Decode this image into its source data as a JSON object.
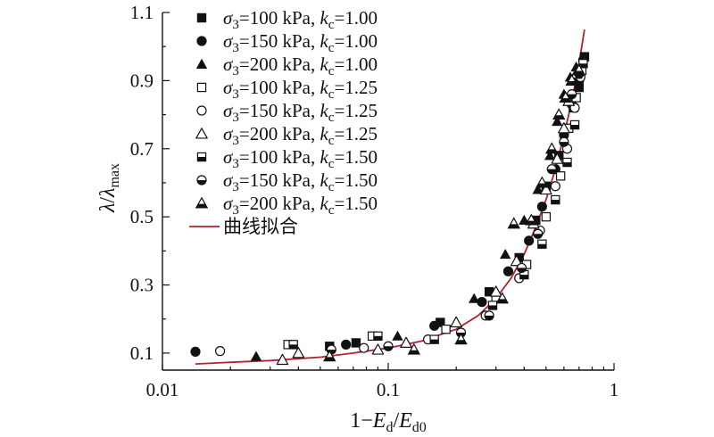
{
  "chart_data": {
    "type": "scatter",
    "xscale": "log",
    "xlim": [
      0.01,
      1
    ],
    "ylim": [
      0.05,
      1.1
    ],
    "xticks": [
      {
        "value": 0.01,
        "label": "0.01"
      },
      {
        "value": 0.1,
        "label": "0.1"
      },
      {
        "value": 1,
        "label": "1"
      }
    ],
    "yticks": [
      {
        "value": 0.1,
        "label": "0.1"
      },
      {
        "value": 0.3,
        "label": "0.3"
      },
      {
        "value": 0.5,
        "label": "0.5"
      },
      {
        "value": 0.7,
        "label": "0.7"
      },
      {
        "value": 0.9,
        "label": "0.9"
      },
      {
        "value": 1.1,
        "label": "1.1"
      }
    ],
    "xlabel": {
      "pre": "1−",
      "var": "E",
      "sub1": "d",
      "mid": "/",
      "var2": "E",
      "sub2": "d0"
    },
    "ylabel": {
      "var": "λ",
      "mid": "/",
      "var2": "λ",
      "sub": "max"
    },
    "legend_position": "top-left",
    "series": [
      {
        "name_parts": {
          "s": "σ",
          "sub": "3",
          "text": "=100 kPa, ",
          "k": "k",
          "ksub": "c",
          "kval": "=1.00"
        },
        "marker": "square-filled",
        "x": [
          0.055,
          0.072,
          0.17,
          0.28,
          0.38,
          0.45,
          0.5,
          0.57,
          0.62,
          0.66,
          0.7,
          0.74
        ],
        "y": [
          0.12,
          0.13,
          0.19,
          0.28,
          0.38,
          0.49,
          0.59,
          0.68,
          0.76,
          0.82,
          0.88,
          0.97
        ]
      },
      {
        "name_parts": {
          "s": "σ",
          "sub": "3",
          "text": "=150 kPa, ",
          "k": "k",
          "ksub": "c",
          "kval": "=1.00"
        },
        "marker": "circle-filled",
        "x": [
          0.014,
          0.065,
          0.16,
          0.26,
          0.34,
          0.42,
          0.48,
          0.55,
          0.6,
          0.65,
          0.7,
          0.73
        ],
        "y": [
          0.104,
          0.125,
          0.18,
          0.25,
          0.34,
          0.43,
          0.53,
          0.64,
          0.74,
          0.83,
          0.9,
          0.96
        ]
      },
      {
        "name_parts": {
          "s": "σ",
          "sub": "3",
          "text": "=200 kPa, ",
          "k": "k",
          "ksub": "c",
          "kval": "=1.00"
        },
        "marker": "triangle-filled",
        "x": [
          0.026,
          0.11,
          0.24,
          0.33,
          0.4,
          0.46,
          0.52,
          0.56,
          0.6,
          0.64,
          0.68
        ],
        "y": [
          0.09,
          0.15,
          0.26,
          0.39,
          0.49,
          0.58,
          0.68,
          0.78,
          0.86,
          0.91,
          0.94
        ]
      },
      {
        "name_parts": {
          "s": "σ",
          "sub": "3",
          "text": "=100 kPa, ",
          "k": "k",
          "ksub": "c",
          "kval": "=1.25"
        },
        "marker": "square-open",
        "x": [
          0.036,
          0.085,
          0.18,
          0.3,
          0.41,
          0.5,
          0.58,
          0.63,
          0.68,
          0.72
        ],
        "y": [
          0.125,
          0.15,
          0.17,
          0.26,
          0.36,
          0.5,
          0.62,
          0.76,
          0.85,
          0.93
        ]
      },
      {
        "name_parts": {
          "s": "σ",
          "sub": "3",
          "text": "=150 kPa, ",
          "k": "k",
          "ksub": "c",
          "kval": "=1.25"
        },
        "marker": "circle-open",
        "x": [
          0.018,
          0.078,
          0.15,
          0.27,
          0.38,
          0.47,
          0.55,
          0.62,
          0.67,
          0.71
        ],
        "y": [
          0.106,
          0.115,
          0.14,
          0.21,
          0.32,
          0.46,
          0.59,
          0.7,
          0.82,
          0.91
        ]
      },
      {
        "name_parts": {
          "s": "σ",
          "sub": "3",
          "text": "=200 kPa, ",
          "k": "k",
          "ksub": "c",
          "kval": "=1.25"
        },
        "marker": "triangle-open",
        "x": [
          0.034,
          0.04,
          0.09,
          0.12,
          0.2,
          0.3,
          0.37,
          0.44,
          0.5,
          0.56,
          0.6,
          0.63,
          0.68
        ],
        "y": [
          0.08,
          0.1,
          0.11,
          0.13,
          0.19,
          0.28,
          0.37,
          0.48,
          0.58,
          0.67,
          0.76,
          0.84,
          0.92
        ]
      },
      {
        "name_parts": {
          "s": "σ",
          "sub": "3",
          "text": "=100 kPa, ",
          "k": "k",
          "ksub": "c",
          "kval": "=1.50"
        },
        "marker": "square-half",
        "x": [
          0.038,
          0.09,
          0.16,
          0.29,
          0.4,
          0.48,
          0.55,
          0.62,
          0.67,
          0.73
        ],
        "y": [
          0.125,
          0.15,
          0.14,
          0.24,
          0.33,
          0.42,
          0.55,
          0.66,
          0.77,
          0.95
        ]
      },
      {
        "name_parts": {
          "s": "σ",
          "sub": "3",
          "text": "=150 kPa, ",
          "k": "k",
          "ksub": "c",
          "kval": "=1.50"
        },
        "marker": "circle-half",
        "x": [
          0.056,
          0.1,
          0.21,
          0.28,
          0.39,
          0.46,
          0.53,
          0.6,
          0.65,
          0.7
        ],
        "y": [
          0.11,
          0.12,
          0.16,
          0.21,
          0.35,
          0.45,
          0.64,
          0.72,
          0.86,
          0.92
        ]
      },
      {
        "name_parts": {
          "s": "σ",
          "sub": "3",
          "text": "=200 kPa, ",
          "k": "k",
          "ksub": "c",
          "kval": "=1.50"
        },
        "marker": "triangle-half",
        "x": [
          0.055,
          0.13,
          0.21,
          0.32,
          0.36,
          0.43,
          0.48,
          0.53,
          0.57,
          0.61,
          0.65,
          0.7
        ],
        "y": [
          0.09,
          0.11,
          0.14,
          0.26,
          0.48,
          0.49,
          0.6,
          0.7,
          0.8,
          0.85,
          0.9,
          0.93
        ]
      },
      {
        "name": "曲线拟合",
        "marker": "line",
        "color": "#b5212f",
        "x": [
          0.014,
          0.02,
          0.03,
          0.05,
          0.07,
          0.1,
          0.14,
          0.2,
          0.25,
          0.3,
          0.35,
          0.4,
          0.45,
          0.5,
          0.55,
          0.6,
          0.65,
          0.7,
          0.74
        ],
        "y": [
          0.068,
          0.073,
          0.078,
          0.088,
          0.1,
          0.115,
          0.135,
          0.17,
          0.21,
          0.26,
          0.32,
          0.39,
          0.47,
          0.55,
          0.64,
          0.74,
          0.84,
          0.95,
          1.05
        ]
      }
    ]
  },
  "colors": {
    "marker": "#111111",
    "fit_line": "#b5212f",
    "axis": "#111111"
  }
}
